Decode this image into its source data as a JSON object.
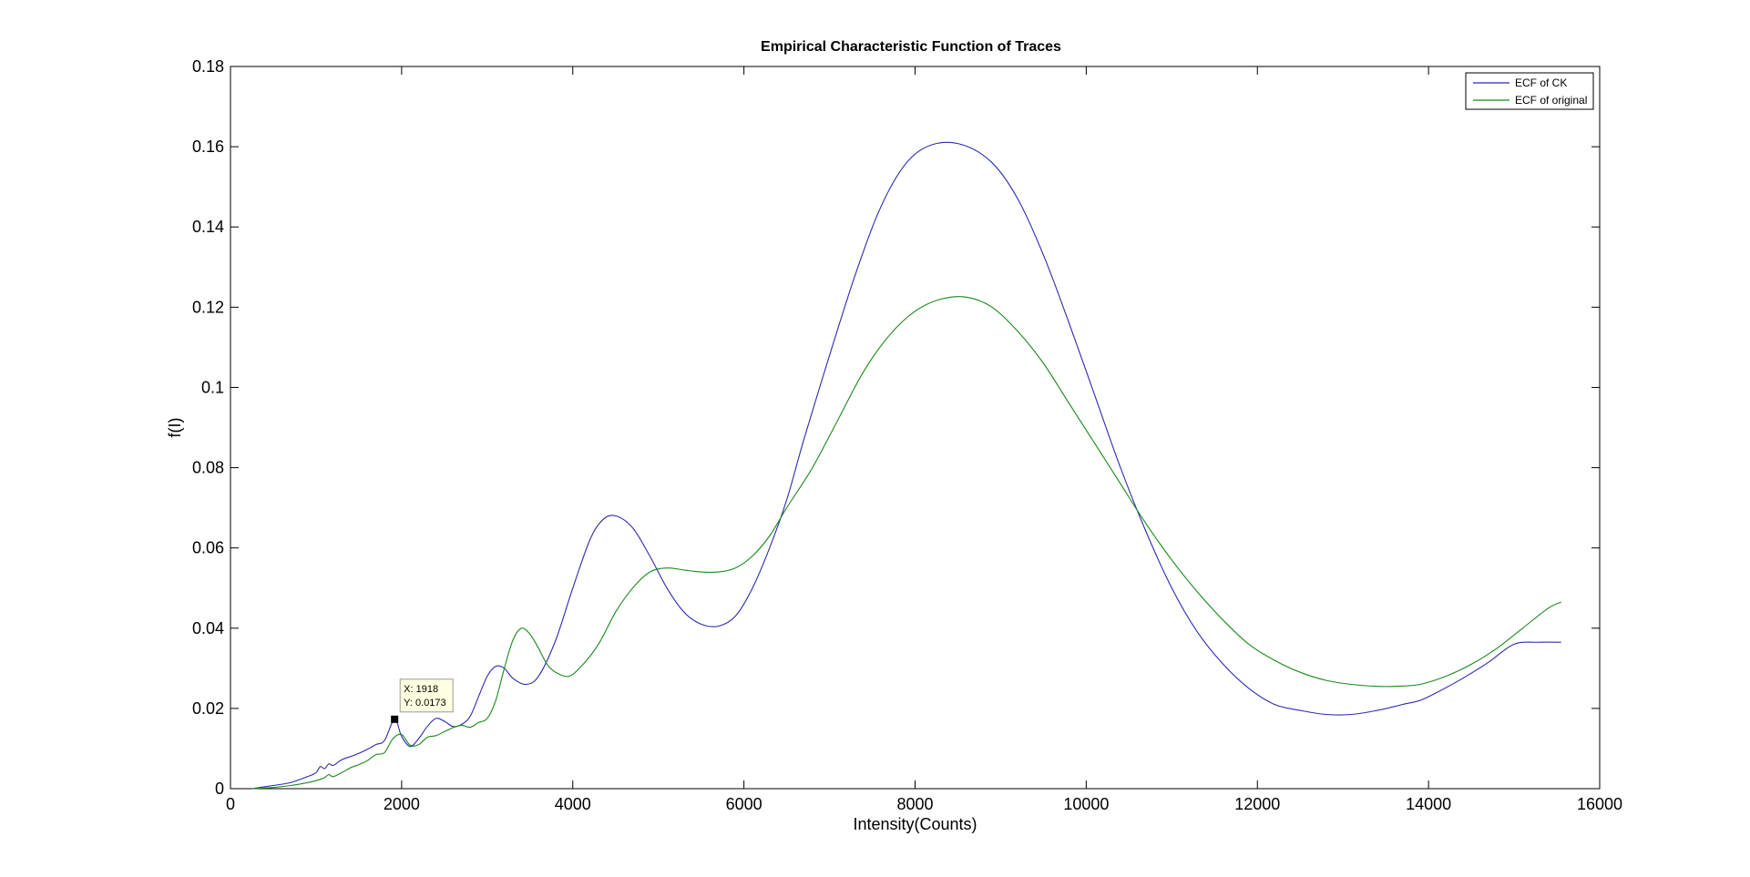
{
  "chart_data": {
    "type": "line",
    "title": "Empirical Characteristic Function of Traces",
    "xlabel": "Intensity(Counts)",
    "ylabel": "f(I)",
    "xlim": [
      0,
      16000
    ],
    "ylim": [
      0,
      0.18
    ],
    "xticks": [
      "0",
      "2000",
      "4000",
      "6000",
      "8000",
      "10000",
      "12000",
      "14000",
      "16000"
    ],
    "yticks": [
      "0",
      "0.02",
      "0.04",
      "0.06",
      "0.08",
      "0.1",
      "0.12",
      "0.14",
      "0.16",
      "0.18"
    ],
    "grid": false,
    "legend_position": "top-right",
    "series": [
      {
        "name": "ECF of CK",
        "color": "#2b2bb0",
        "x": [
          250,
          500,
          700,
          900,
          1000,
          1050,
          1100,
          1150,
          1200,
          1300,
          1400,
          1500,
          1600,
          1700,
          1800,
          1918,
          2000,
          2100,
          2200,
          2300,
          2400,
          2500,
          2600,
          2700,
          2800,
          2900,
          3000,
          3100,
          3200,
          3300,
          3450,
          3600,
          3800,
          4000,
          4200,
          4350,
          4500,
          4700,
          4900,
          5100,
          5300,
          5500,
          5700,
          5900,
          6100,
          6300,
          6500,
          6700,
          7000,
          7300,
          7600,
          7900,
          8200,
          8550,
          8900,
          9200,
          9500,
          9800,
          10100,
          10400,
          10700,
          11000,
          11300,
          11600,
          11900,
          12200,
          12500,
          12800,
          13100,
          13400,
          13700,
          13900,
          14100,
          14400,
          14700,
          15000,
          15300,
          15550
        ],
        "y": [
          0,
          0.0008,
          0.0015,
          0.003,
          0.004,
          0.0055,
          0.005,
          0.0062,
          0.0058,
          0.0072,
          0.008,
          0.0088,
          0.0098,
          0.011,
          0.012,
          0.0173,
          0.013,
          0.0105,
          0.0125,
          0.0155,
          0.0175,
          0.0168,
          0.0155,
          0.016,
          0.018,
          0.023,
          0.028,
          0.0305,
          0.03,
          0.0275,
          0.026,
          0.028,
          0.037,
          0.05,
          0.062,
          0.067,
          0.068,
          0.065,
          0.058,
          0.05,
          0.044,
          0.041,
          0.0405,
          0.043,
          0.05,
          0.06,
          0.072,
          0.087,
          0.108,
          0.128,
          0.145,
          0.156,
          0.1605,
          0.1605,
          0.156,
          0.147,
          0.133,
          0.116,
          0.098,
          0.08,
          0.064,
          0.05,
          0.039,
          0.031,
          0.025,
          0.021,
          0.0195,
          0.0185,
          0.0185,
          0.0195,
          0.021,
          0.022,
          0.024,
          0.0275,
          0.0315,
          0.036,
          0.0365,
          0.0365
        ]
      },
      {
        "name": "ECF of original",
        "color": "#1a8a1a",
        "x": [
          250,
          500,
          700,
          900,
          1000,
          1100,
          1150,
          1200,
          1300,
          1400,
          1500,
          1600,
          1700,
          1800,
          1900,
          2000,
          2100,
          2200,
          2300,
          2400,
          2500,
          2600,
          2700,
          2800,
          2900,
          3000,
          3100,
          3200,
          3300,
          3400,
          3500,
          3600,
          3700,
          3800,
          3950,
          4100,
          4300,
          4500,
          4700,
          4900,
          5100,
          5300,
          5500,
          5700,
          5900,
          6100,
          6300,
          6500,
          6800,
          7100,
          7400,
          7700,
          8000,
          8300,
          8600,
          8900,
          9200,
          9500,
          9800,
          10100,
          10400,
          10700,
          11000,
          11300,
          11600,
          11900,
          12200,
          12500,
          12800,
          13100,
          13400,
          13600,
          13900,
          14200,
          14500,
          14800,
          15100,
          15400,
          15550
        ],
        "y": [
          0,
          0.0003,
          0.0008,
          0.0015,
          0.002,
          0.0028,
          0.0035,
          0.003,
          0.004,
          0.0052,
          0.006,
          0.007,
          0.0085,
          0.009,
          0.0125,
          0.0135,
          0.0108,
          0.011,
          0.0128,
          0.0132,
          0.0142,
          0.0152,
          0.0158,
          0.0153,
          0.0165,
          0.0175,
          0.022,
          0.03,
          0.037,
          0.04,
          0.0385,
          0.035,
          0.031,
          0.029,
          0.028,
          0.0305,
          0.036,
          0.044,
          0.05,
          0.054,
          0.055,
          0.0545,
          0.054,
          0.054,
          0.055,
          0.058,
          0.063,
          0.07,
          0.08,
          0.092,
          0.104,
          0.113,
          0.119,
          0.122,
          0.1225,
          0.12,
          0.114,
          0.106,
          0.096,
          0.086,
          0.076,
          0.066,
          0.057,
          0.049,
          0.042,
          0.036,
          0.032,
          0.029,
          0.027,
          0.026,
          0.0255,
          0.0255,
          0.026,
          0.028,
          0.031,
          0.035,
          0.04,
          0.045,
          0.0465
        ]
      }
    ],
    "annotations": [
      {
        "kind": "datatip",
        "x": 1918,
        "y": 0.0173,
        "line1": "X: 1918",
        "line2": "Y: 0.0173"
      }
    ]
  }
}
